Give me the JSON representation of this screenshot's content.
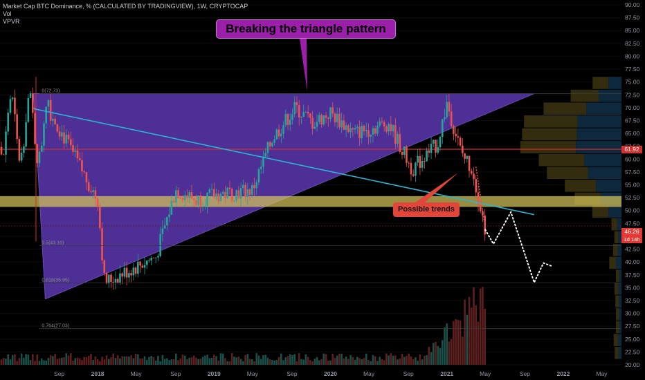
{
  "header": {
    "title": "Market Cap BTC Dominance, % (CALCULATED BY TRADINGVIEW), 1W, CRYPTOCAP",
    "indicator1": "Vol",
    "indicator2": "VPVR"
  },
  "annotations": {
    "main": "Breaking the triangle pattern",
    "secondary": "Possible trends"
  },
  "price_tags": {
    "level": "61.92",
    "last": "46.26",
    "countdown": "1d 14h"
  },
  "colors": {
    "background": "#000000",
    "triangle": "#5e3ab8",
    "trendline": "#29b6d6",
    "hline_red": "#d32f2f",
    "band_yellow": "#d4c35a",
    "candle_up": "#26a69a",
    "candle_down": "#ef5350",
    "callout_main": "#9b1fa8",
    "callout_secondary": "#e2463a"
  },
  "chart_data": {
    "type": "candlestick",
    "timeframe": "1W",
    "ylim": [
      20,
      90
    ],
    "y_ticks": [
      "90.00",
      "87.50",
      "85.00",
      "82.50",
      "80.00",
      "77.50",
      "75.00",
      "72.50",
      "70.00",
      "67.50",
      "65.00",
      "62.50",
      "60.00",
      "57.50",
      "55.00",
      "52.50",
      "50.00",
      "47.50",
      "45.00",
      "42.50",
      "40.00",
      "37.50",
      "35.00",
      "32.50",
      "30.00",
      "27.50",
      "25.00",
      "22.50",
      "20.00"
    ],
    "x_ticks": [
      "Sep",
      "2018",
      "May",
      "Sep",
      "2019",
      "May",
      "Sep",
      "2020",
      "May",
      "Sep",
      "2021",
      "May",
      "Sep",
      "2022",
      "May"
    ],
    "fib_levels": [
      {
        "label": "0(72.73)",
        "value": 72.73
      },
      {
        "label": "0.5(43.16)",
        "value": 43.16
      },
      {
        "label": "0.618(35.95)",
        "value": 35.95
      },
      {
        "label": "0.764(27.03)",
        "value": 27.03
      }
    ],
    "horizontal_levels": [
      61.92,
      47.0
    ],
    "band": [
      50.7,
      52.8
    ],
    "triangle": [
      {
        "date": "2017.45",
        "value": 72.73
      },
      {
        "date": "2021.75",
        "value": 72.73
      },
      {
        "date": "2017.55",
        "value": 32.8
      }
    ],
    "trendline": [
      {
        "date": "2017.45",
        "value": 69.8
      },
      {
        "date": "2021.75",
        "value": 49.2
      }
    ],
    "anchors": [
      {
        "date": "2017.60",
        "value": 69.0
      },
      {
        "date": "2018.00",
        "value": 52.0
      },
      {
        "date": "2018.06",
        "value": 36.0
      },
      {
        "date": "2018.50",
        "value": 41.0
      },
      {
        "date": "2018.67",
        "value": 54.0
      },
      {
        "date": "2018.85",
        "value": 52.0
      },
      {
        "date": "2019.00",
        "value": 53.0
      },
      {
        "date": "2019.33",
        "value": 54.0
      },
      {
        "date": "2019.50",
        "value": 64.0
      },
      {
        "date": "2019.70",
        "value": 70.0
      },
      {
        "date": "2019.85",
        "value": 67.0
      },
      {
        "date": "2020.00",
        "value": 69.0
      },
      {
        "date": "2020.20",
        "value": 65.0
      },
      {
        "date": "2020.50",
        "value": 67.0
      },
      {
        "date": "2020.70",
        "value": 58.0
      },
      {
        "date": "2020.92",
        "value": 63.0
      },
      {
        "date": "2021.00",
        "value": 71.0
      },
      {
        "date": "2021.12",
        "value": 61.5
      },
      {
        "date": "2021.22",
        "value": 58.0
      },
      {
        "date": "2021.33",
        "value": 46.26
      }
    ],
    "projection": [
      {
        "date": "2021.40",
        "value": 43.5
      },
      {
        "date": "2021.55",
        "value": 49.7
      },
      {
        "date": "2021.75",
        "value": 36.0
      },
      {
        "date": "2021.83",
        "value": 39.8
      },
      {
        "date": "2021.90",
        "value": 39.2
      }
    ]
  }
}
